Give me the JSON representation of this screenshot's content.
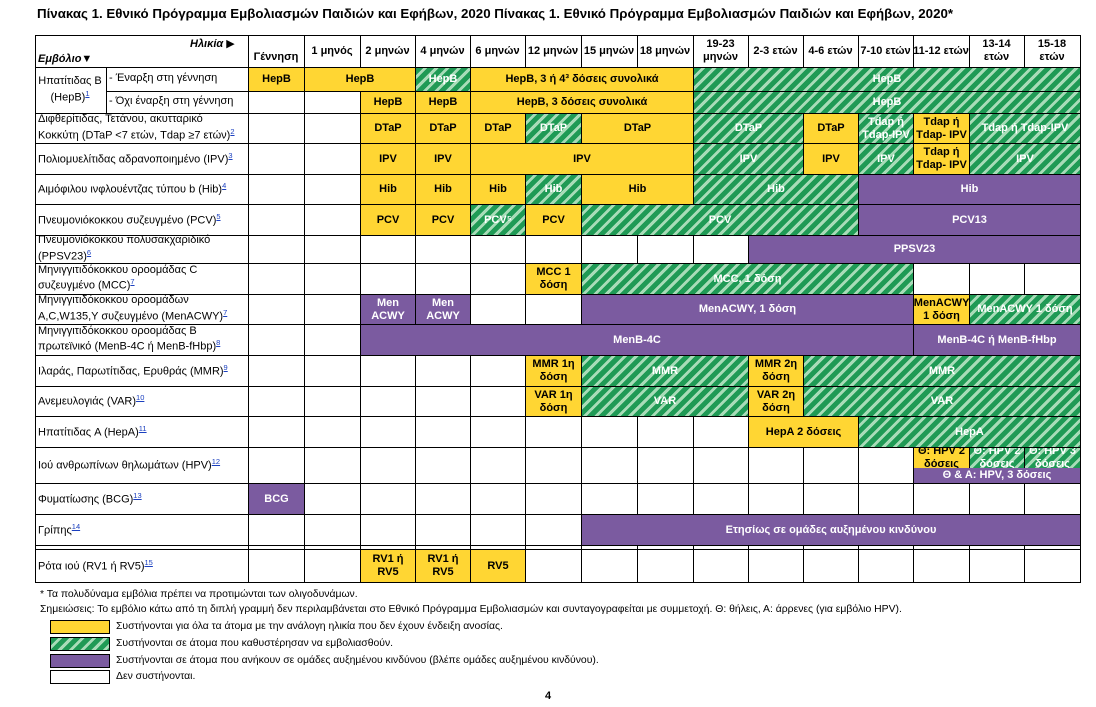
{
  "title": "Πίνακας 1. Εθνικό Πρόγραμμα Εμβολιασμών Παιδιών και Εφήβων, 2020 Πίνακας 1. Εθνικό Πρόγραμμα Εμβολιασμών Παιδιών και Εφήβων, 2020*",
  "header": {
    "age_label": "Ηλικία ▶",
    "vaccine_label": "Εμβόλιο▼"
  },
  "ages": [
    "Γέννηση",
    "1 μηνός",
    "2 μηνών",
    "4 μηνών",
    "6 μηνών",
    "12 μηνών",
    "15 μηνών",
    "18 μηνών",
    "19-23 μηνών",
    "2-3 ετών",
    "4-6 ετών",
    "7-10 ετών",
    "11-12 ετών",
    "13-14 ετών",
    "15-18 ετών"
  ],
  "rows": [
    {
      "label": "Ηπατίτιδας Β (HepB)",
      "fn": "1",
      "sub": "- Έναρξη στη γέννηση"
    },
    {
      "label": "",
      "fn": "",
      "sub": "- Όχι έναρξη στη γέννηση"
    },
    {
      "label": "Διφθερίτιδας, Τετάνου, ακυτταρικό Κοκκύτη (DTaP <7 ετών, Tdap ≥7 ετών)",
      "fn": "2"
    },
    {
      "label": "Πολιομυελίτιδας αδρανοποιημένο (IPV)",
      "fn": "3"
    },
    {
      "label": "Αιμόφιλου ινφλουέντζας τύπου b (Hib)",
      "fn": "4"
    },
    {
      "label": "Πνευμονιόκοκκου συζευγμένο (PCV)",
      "fn": "5"
    },
    {
      "label": "Πνευμονιόκοκκου πολυσακχαριδικό (PPSV23)",
      "fn": "6"
    },
    {
      "label": "Μηνιγγιτιδόκοκκου οροομάδας C συζευγμένο (MCC)",
      "fn": "7"
    },
    {
      "label": "Μηνιγγιτιδόκοκκου οροομάδων A,C,W135,Y συζευγμένο (MenACWY)",
      "fn": "7"
    },
    {
      "label": "Μηνιγγιτιδόκοκκου οροομάδας B πρωτεϊνικό (MenB-4C ή MenB-fHbp)",
      "fn": "8"
    },
    {
      "label": "Ιλαράς, Παρωτίτιδας, Ερυθράς (MMR)",
      "fn": "9"
    },
    {
      "label": "Ανεμευλογιάς (VAR)",
      "fn": "10"
    },
    {
      "label": "Ηπατίτιδας A (HepA)",
      "fn": "11"
    },
    {
      "label": "Ιού ανθρωπίνων θηλωμάτων (HPV)",
      "fn": "12"
    },
    {
      "label": "Φυματίωσης (BCG)",
      "fn": "13"
    },
    {
      "label": "Γρίπης",
      "fn": "14"
    },
    {
      "label": "Ρότα ιού (RV1 ή RV5)",
      "fn": "15"
    }
  ],
  "cells": [
    {
      "r": 0,
      "c0": 0,
      "c1": 0,
      "t": "y",
      "txt": "HepB"
    },
    {
      "r": 0,
      "c0": 1,
      "c1": 2,
      "t": "y",
      "txt": "HepB"
    },
    {
      "r": 0,
      "c0": 3,
      "c1": 3,
      "t": "s",
      "txt": "HepB"
    },
    {
      "r": 0,
      "c0": 4,
      "c1": 7,
      "t": "y",
      "txt": "HepB, 3 ή 4³ δόσεις συνολικά"
    },
    {
      "r": 0,
      "c0": 8,
      "c1": 14,
      "t": "s",
      "txt": "HepB"
    },
    {
      "r": 1,
      "c0": 2,
      "c1": 2,
      "t": "y",
      "txt": "HepB"
    },
    {
      "r": 1,
      "c0": 3,
      "c1": 3,
      "t": "y",
      "txt": "HepB"
    },
    {
      "r": 1,
      "c0": 4,
      "c1": 7,
      "t": "y",
      "txt": "HepB, 3 δόσεις συνολικά"
    },
    {
      "r": 1,
      "c0": 8,
      "c1": 14,
      "t": "s",
      "txt": "HepB"
    },
    {
      "r": 2,
      "c0": 2,
      "c1": 2,
      "t": "y",
      "txt": "DTaP"
    },
    {
      "r": 2,
      "c0": 3,
      "c1": 3,
      "t": "y",
      "txt": "DTaP"
    },
    {
      "r": 2,
      "c0": 4,
      "c1": 4,
      "t": "y",
      "txt": "DTaP"
    },
    {
      "r": 2,
      "c0": 5,
      "c1": 5,
      "t": "s",
      "txt": "DTaP"
    },
    {
      "r": 2,
      "c0": 6,
      "c1": 7,
      "t": "y",
      "txt": "DTaP"
    },
    {
      "r": 2,
      "c0": 8,
      "c1": 9,
      "t": "s",
      "txt": "DTaP"
    },
    {
      "r": 2,
      "c0": 10,
      "c1": 10,
      "t": "y",
      "txt": "DTaP"
    },
    {
      "r": 2,
      "c0": 11,
      "c1": 11,
      "t": "s",
      "txt": "Tdap ή Tdap-IPV"
    },
    {
      "r": 2,
      "c0": 12,
      "c1": 12,
      "t": "y",
      "txt": "Tdap ή Tdap- IPV"
    },
    {
      "r": 2,
      "c0": 13,
      "c1": 14,
      "t": "s",
      "txt": "Tdap ή Tdap-IPV"
    },
    {
      "r": 3,
      "c0": 2,
      "c1": 2,
      "t": "y",
      "txt": "IPV"
    },
    {
      "r": 3,
      "c0": 3,
      "c1": 3,
      "t": "y",
      "txt": "IPV"
    },
    {
      "r": 3,
      "c0": 4,
      "c1": 7,
      "t": "y",
      "txt": "IPV"
    },
    {
      "r": 3,
      "c0": 8,
      "c1": 9,
      "t": "s",
      "txt": "IPV"
    },
    {
      "r": 3,
      "c0": 10,
      "c1": 10,
      "t": "y",
      "txt": "IPV"
    },
    {
      "r": 3,
      "c0": 11,
      "c1": 11,
      "t": "s",
      "txt": "IPV"
    },
    {
      "r": 3,
      "c0": 12,
      "c1": 12,
      "t": "y",
      "txt": "Tdap ή Tdap- IPV"
    },
    {
      "r": 3,
      "c0": 13,
      "c1": 14,
      "t": "s",
      "txt": "IPV"
    },
    {
      "r": 4,
      "c0": 2,
      "c1": 2,
      "t": "y",
      "txt": "Hib"
    },
    {
      "r": 4,
      "c0": 3,
      "c1": 3,
      "t": "y",
      "txt": "Hib"
    },
    {
      "r": 4,
      "c0": 4,
      "c1": 4,
      "t": "y",
      "txt": "Hib"
    },
    {
      "r": 4,
      "c0": 5,
      "c1": 5,
      "t": "s",
      "txt": "Hib"
    },
    {
      "r": 4,
      "c0": 6,
      "c1": 7,
      "t": "y",
      "txt": "Hib"
    },
    {
      "r": 4,
      "c0": 8,
      "c1": 10,
      "t": "s",
      "txt": "Hib"
    },
    {
      "r": 4,
      "c0": 11,
      "c1": 14,
      "t": "p",
      "txt": "Hib"
    },
    {
      "r": 5,
      "c0": 2,
      "c1": 2,
      "t": "y",
      "txt": "PCV"
    },
    {
      "r": 5,
      "c0": 3,
      "c1": 3,
      "t": "y",
      "txt": "PCV"
    },
    {
      "r": 5,
      "c0": 4,
      "c1": 4,
      "t": "s",
      "txt": "PCV⁵"
    },
    {
      "r": 5,
      "c0": 5,
      "c1": 5,
      "t": "y",
      "txt": "PCV"
    },
    {
      "r": 5,
      "c0": 6,
      "c1": 10,
      "t": "s",
      "txt": "PCV"
    },
    {
      "r": 5,
      "c0": 11,
      "c1": 14,
      "t": "p",
      "txt": "PCV13"
    },
    {
      "r": 6,
      "c0": 9,
      "c1": 14,
      "t": "p",
      "txt": "PPSV23"
    },
    {
      "r": 7,
      "c0": 5,
      "c1": 5,
      "t": "y",
      "txt": "MCC 1 δόση"
    },
    {
      "r": 7,
      "c0": 6,
      "c1": 11,
      "t": "s",
      "txt": "MCC, 1 δόση"
    },
    {
      "r": 8,
      "c0": 2,
      "c1": 2,
      "t": "p",
      "txt": "Men ACWY"
    },
    {
      "r": 8,
      "c0": 3,
      "c1": 3,
      "t": "p",
      "txt": "Men ACWY"
    },
    {
      "r": 8,
      "c0": 6,
      "c1": 11,
      "t": "p",
      "txt": "MenACWY, 1 δόση"
    },
    {
      "r": 8,
      "c0": 12,
      "c1": 12,
      "t": "y",
      "txt": "MenACWY 1 δόση"
    },
    {
      "r": 8,
      "c0": 13,
      "c1": 14,
      "t": "s",
      "txt": "MenACWY 1 δόση"
    },
    {
      "r": 9,
      "c0": 2,
      "c1": 11,
      "t": "p",
      "txt": "MenB-4C"
    },
    {
      "r": 9,
      "c0": 12,
      "c1": 14,
      "t": "p",
      "txt": "MenB-4C ή MenB-fHbp"
    },
    {
      "r": 10,
      "c0": 5,
      "c1": 5,
      "t": "y",
      "txt": "MMR 1η δόση"
    },
    {
      "r": 10,
      "c0": 6,
      "c1": 8,
      "t": "s",
      "txt": "MMR"
    },
    {
      "r": 10,
      "c0": 9,
      "c1": 9,
      "t": "y",
      "txt": "MMR 2η δόση"
    },
    {
      "r": 10,
      "c0": 10,
      "c1": 14,
      "t": "s",
      "txt": "MMR"
    },
    {
      "r": 11,
      "c0": 5,
      "c1": 5,
      "t": "y",
      "txt": "VAR 1η δόση"
    },
    {
      "r": 11,
      "c0": 6,
      "c1": 8,
      "t": "s",
      "txt": "VAR"
    },
    {
      "r": 11,
      "c0": 9,
      "c1": 9,
      "t": "y",
      "txt": "VAR 2η δόση"
    },
    {
      "r": 11,
      "c0": 10,
      "c1": 14,
      "t": "s",
      "txt": "VAR"
    },
    {
      "r": 12,
      "c0": 9,
      "c1": 10,
      "t": "y",
      "txt": "HepA 2 δόσεις"
    },
    {
      "r": 12,
      "c0": 11,
      "c1": 14,
      "t": "s",
      "txt": "HepA"
    },
    {
      "r": 13,
      "c0": 12,
      "c1": 12,
      "t": "y",
      "txt": "Θ: HPV 2 δόσεις",
      "half": "top"
    },
    {
      "r": 13,
      "c0": 13,
      "c1": 13,
      "t": "s",
      "txt": "Θ: HPV 2 δόσεις",
      "half": "top"
    },
    {
      "r": 13,
      "c0": 14,
      "c1": 14,
      "t": "s",
      "txt": "Θ: HPV 3 δόσεις",
      "half": "top"
    },
    {
      "r": 13,
      "c0": 12,
      "c1": 14,
      "t": "p",
      "txt": "Θ & Α: HPV, 3 δόσεις",
      "half": "bot"
    },
    {
      "r": 14,
      "c0": 0,
      "c1": 0,
      "t": "p",
      "txt": "BCG"
    },
    {
      "r": 15,
      "c0": 6,
      "c1": 14,
      "t": "p",
      "txt": "Ετησίως σε ομάδες αυξημένου κινδύνου"
    },
    {
      "r": 16,
      "c0": 2,
      "c1": 2,
      "t": "y",
      "txt": "RV1 ή RV5"
    },
    {
      "r": 16,
      "c0": 3,
      "c1": 3,
      "t": "y",
      "txt": "RV1 ή RV5"
    },
    {
      "r": 16,
      "c0": 4,
      "c1": 4,
      "t": "y",
      "txt": "RV5"
    }
  ],
  "footnote_star": "* Τα πολυδύναμα εμβόλια πρέπει να προτιμώνται των ολιγοδυνάμων.",
  "notes_line": "Σημειώσεις:  Το εμβόλιο κάτω από τη διπλή γραμμή δεν περιλαμβάνεται στο Εθνικό Πρόγραμμα Εμβολιασμών και συνταγογραφείται με συμμετοχή.  Θ: θήλεις, Α: άρρενες (για εμβόλιο HPV).",
  "legend": [
    {
      "t": "y",
      "text": "Συστήνονται για όλα τα άτομα με την ανάλογη ηλικία που δεν έχουν ένδειξη ανοσίας."
    },
    {
      "t": "s",
      "text": "Συστήνονται σε άτομα που καθυστέρησαν να εμβολιασθούν."
    },
    {
      "t": "p",
      "text": "Συστήνονται σε άτομα που ανήκουν σε ομάδες αυξημένου κινδύνου (βλέπε ομάδες αυξημένου κινδύνου)."
    },
    {
      "t": "w",
      "text": "Δεν συστήνονται."
    }
  ],
  "page_number": "4",
  "colors": {
    "yellow": "#ffd633",
    "purple": "#7b5ba0",
    "green": "#1f9a55"
  }
}
